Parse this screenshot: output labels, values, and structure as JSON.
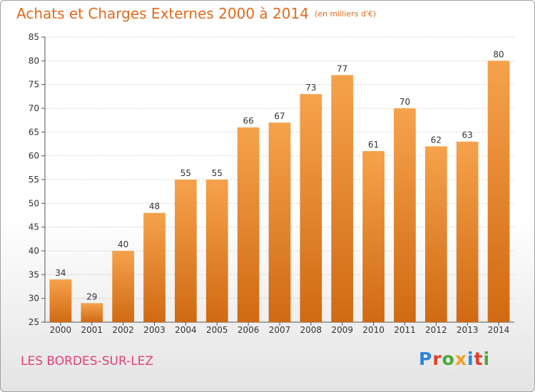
{
  "title": "Achats et Charges Externes 2000 à 2014",
  "subtitle": "(en milliers d'€)",
  "commune": "LES BORDES-SUR-LEZ",
  "logo": {
    "text": "Proxiti",
    "letters": [
      {
        "c": "P",
        "color": "#2e86d6"
      },
      {
        "c": "r",
        "color": "#e0402a"
      },
      {
        "c": "o",
        "color": "#4aa83a"
      },
      {
        "c": "x",
        "color": "#f0a020"
      },
      {
        "c": "i",
        "color": "#2e86d6"
      },
      {
        "c": "t",
        "color": "#e0402a"
      },
      {
        "c": "i",
        "color": "#4aa83a"
      }
    ]
  },
  "chart_data": {
    "type": "bar",
    "categories": [
      "2000",
      "2001",
      "2002",
      "2003",
      "2004",
      "2005",
      "2006",
      "2007",
      "2008",
      "2009",
      "2010",
      "2011",
      "2012",
      "2013",
      "2014"
    ],
    "values": [
      34,
      29,
      40,
      48,
      55,
      55,
      66,
      67,
      73,
      77,
      61,
      70,
      62,
      63,
      80
    ],
    "ylim": [
      25,
      85
    ],
    "yticks": [
      25,
      30,
      35,
      40,
      45,
      50,
      55,
      60,
      65,
      70,
      75,
      80,
      85
    ],
    "grid": true,
    "bar_color": "#e8852a"
  }
}
